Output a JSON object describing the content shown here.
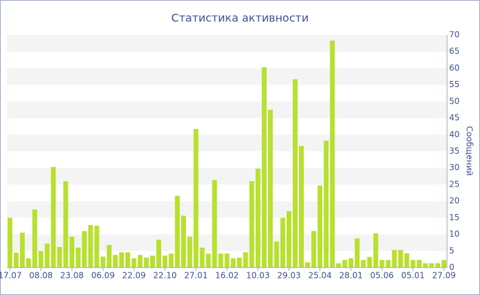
{
  "chart_data": {
    "type": "bar",
    "title": "Статистика активности",
    "y_label": "Сообщений",
    "categories": [
      "17.07",
      null,
      null,
      null,
      null,
      "08.08",
      null,
      null,
      null,
      null,
      "23.08",
      null,
      null,
      null,
      null,
      "06.09",
      null,
      null,
      null,
      null,
      "22.09",
      null,
      null,
      null,
      null,
      "22.10",
      null,
      null,
      null,
      null,
      "27.01",
      null,
      null,
      null,
      null,
      "16.02",
      null,
      null,
      null,
      null,
      "10.03",
      null,
      null,
      null,
      null,
      "29.03",
      null,
      null,
      null,
      null,
      "25.04",
      null,
      null,
      null,
      null,
      "28.01",
      null,
      null,
      null,
      null,
      "05.06",
      null,
      null,
      null,
      null,
      "05.01",
      null,
      null,
      null,
      null,
      "27.09"
    ],
    "values": [
      15,
      4.5,
      10.5,
      2.8,
      17.5,
      5,
      7.2,
      30.3,
      6.2,
      26,
      9.3,
      6,
      11,
      12.8,
      12.6,
      3.3,
      6.8,
      3.8,
      4.6,
      4.6,
      2.8,
      3.8,
      3,
      3.6,
      8.4,
      3.6,
      4.2,
      21.6,
      15.6,
      9.3,
      41.7,
      6,
      4.2,
      26.3,
      4.2,
      4.2,
      2.8,
      3,
      4.6,
      26,
      29.8,
      60.3,
      47.5,
      7.8,
      15,
      17,
      56.7,
      36.6,
      1.6,
      11,
      24.7,
      38.2,
      68.3,
      1.3,
      2.3,
      2.8,
      8.8,
      2.3,
      3.2,
      10.3,
      2.3,
      2.3,
      5.3,
      5.3,
      4.3,
      2.3,
      2.3,
      1.3,
      1.3,
      1.3,
      2.3
    ],
    "color": "#b8e02e",
    "ylim": [
      0,
      70
    ],
    "yticks": [
      0,
      5,
      10,
      15,
      20,
      25,
      30,
      35,
      40,
      45,
      50,
      55,
      60,
      65,
      70
    ],
    "grid": true
  }
}
